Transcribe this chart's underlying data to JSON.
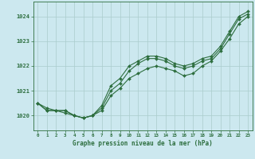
{
  "title": "Graphe pression niveau de la mer (hPa)",
  "background_color": "#cce8ef",
  "grid_color": "#aacccc",
  "line_color": "#2d6e3e",
  "xlim": [
    -0.5,
    23.5
  ],
  "ylim": [
    1019.4,
    1024.6
  ],
  "yticks": [
    1020,
    1021,
    1022,
    1023,
    1024
  ],
  "xticks": [
    0,
    1,
    2,
    3,
    4,
    5,
    6,
    7,
    8,
    9,
    10,
    11,
    12,
    13,
    14,
    15,
    16,
    17,
    18,
    19,
    20,
    21,
    22,
    23
  ],
  "line1": [
    1020.5,
    1020.2,
    1020.2,
    1020.2,
    1020.0,
    1019.9,
    1020.0,
    1020.3,
    1021.0,
    1021.3,
    1021.8,
    1022.1,
    1022.3,
    1022.3,
    1022.2,
    1022.0,
    1021.9,
    1022.0,
    1022.2,
    1022.3,
    1022.7,
    1023.3,
    1023.9,
    1024.1
  ],
  "line2": [
    1020.5,
    1020.3,
    1020.2,
    1020.1,
    1020.0,
    1019.9,
    1020.0,
    1020.2,
    1020.8,
    1021.1,
    1021.5,
    1021.7,
    1021.9,
    1022.0,
    1021.9,
    1021.8,
    1021.6,
    1021.7,
    1022.0,
    1022.2,
    1022.6,
    1023.1,
    1023.7,
    1024.0
  ],
  "line3": [
    1020.5,
    1020.2,
    1020.2,
    1020.2,
    1020.0,
    1019.9,
    1020.0,
    1020.4,
    1021.2,
    1021.5,
    1022.0,
    1022.2,
    1022.4,
    1022.4,
    1022.3,
    1022.1,
    1022.0,
    1022.1,
    1022.3,
    1022.4,
    1022.8,
    1023.4,
    1024.0,
    1024.2
  ]
}
